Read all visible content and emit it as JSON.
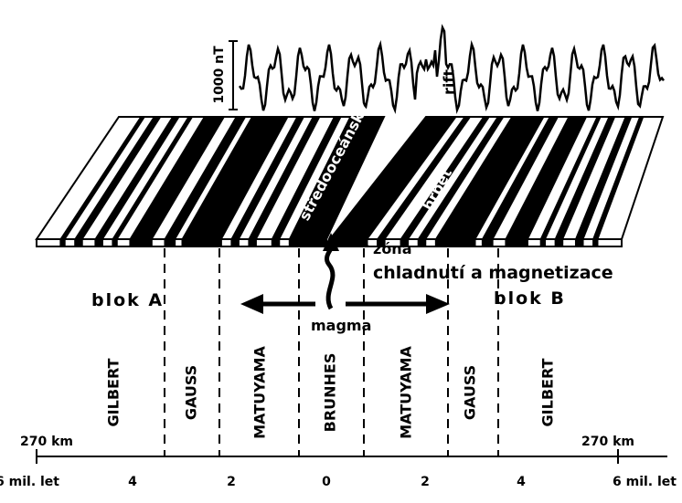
{
  "profile": {
    "scale_label": "1000 nT",
    "rift_label": "rift"
  },
  "ridge": {
    "label_left": "středooceánský",
    "label_right": "hřbet"
  },
  "zone": {
    "line_1": "zóna",
    "line_2": "chladnutí a magnetizace"
  },
  "blocks": {
    "left": "blok A",
    "right": "blok B"
  },
  "magma_label": "magma",
  "epochs": [
    "GILBERT",
    "GAUSS",
    "MATUYAMA",
    "BRUNHES",
    "MATUYAMA",
    "GAUSS",
    "GILBERT"
  ],
  "distance": {
    "left": "270 km",
    "right": "270 km"
  },
  "age_axis": {
    "labels": [
      "6 mil. let",
      "4",
      "2",
      "0",
      "2",
      "4",
      "6 mil. let"
    ]
  }
}
